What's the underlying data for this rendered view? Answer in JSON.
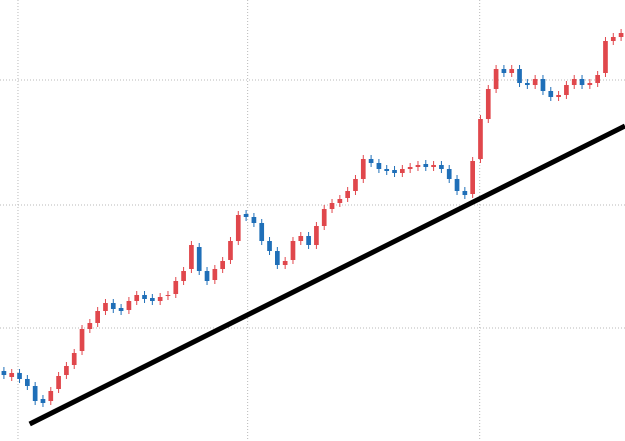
{
  "chart_data": {
    "type": "candlestick",
    "x": [
      0,
      1,
      2,
      3,
      4,
      5,
      6,
      7,
      8,
      9,
      10,
      11,
      12,
      13,
      14,
      15,
      16,
      17,
      18,
      19,
      20,
      21,
      22,
      23,
      24,
      25,
      26,
      27,
      28,
      29,
      30,
      31,
      32,
      33,
      34,
      35,
      36,
      37,
      38,
      39,
      40,
      41,
      42,
      43,
      44,
      45,
      46,
      47,
      48,
      49,
      50,
      51,
      52,
      53,
      54,
      55,
      56,
      57,
      58,
      59,
      60,
      61,
      62,
      63,
      64,
      65,
      66,
      67,
      68,
      69,
      70,
      71,
      72,
      73,
      74,
      75,
      76,
      77,
      78,
      79
    ],
    "open": [
      70,
      64,
      68,
      62,
      55,
      42,
      40,
      52,
      66,
      76,
      90,
      112,
      118,
      130,
      138,
      133,
      131,
      140,
      146,
      143,
      140,
      145,
      147,
      160,
      172,
      194,
      170,
      161,
      172,
      181,
      200,
      227,
      224,
      218,
      200,
      190,
      176,
      181,
      200,
      205,
      196,
      215,
      232,
      238,
      243,
      250,
      262,
      282,
      278,
      272,
      271,
      268,
      272,
      274,
      277,
      274,
      276,
      272,
      262,
      250,
      247,
      282,
      322,
      352,
      372,
      368,
      372,
      358,
      356,
      362,
      350,
      344,
      346,
      356,
      362,
      356,
      358,
      368,
      400,
      404
    ],
    "high": [
      74,
      72,
      72,
      66,
      59,
      46,
      54,
      69,
      79,
      92,
      116,
      122,
      134,
      142,
      142,
      137,
      144,
      150,
      150,
      147,
      148,
      150,
      164,
      174,
      200,
      198,
      174,
      176,
      184,
      204,
      230,
      231,
      228,
      222,
      204,
      194,
      184,
      204,
      209,
      209,
      219,
      236,
      242,
      246,
      254,
      266,
      286,
      286,
      282,
      276,
      275,
      276,
      278,
      280,
      281,
      280,
      280,
      276,
      266,
      254,
      284,
      326,
      356,
      376,
      376,
      376,
      376,
      362,
      366,
      366,
      354,
      350,
      360,
      366,
      366,
      362,
      370,
      404,
      408,
      412
    ],
    "low": [
      62,
      60,
      58,
      51,
      36,
      34,
      36,
      48,
      62,
      72,
      86,
      108,
      114,
      126,
      128,
      126,
      127,
      136,
      138,
      136,
      136,
      141,
      143,
      156,
      168,
      166,
      156,
      157,
      168,
      177,
      196,
      220,
      214,
      196,
      186,
      172,
      172,
      177,
      196,
      192,
      192,
      211,
      228,
      234,
      239,
      246,
      258,
      274,
      268,
      266,
      264,
      264,
      268,
      270,
      270,
      270,
      268,
      258,
      246,
      242,
      243,
      278,
      318,
      348,
      364,
      364,
      354,
      352,
      352,
      346,
      340,
      340,
      342,
      352,
      352,
      352,
      354,
      364,
      396,
      400
    ],
    "close": [
      66,
      68,
      62,
      55,
      40,
      38,
      50,
      65,
      75,
      88,
      112,
      118,
      130,
      138,
      132,
      130,
      140,
      146,
      142,
      140,
      144,
      146,
      160,
      170,
      196,
      170,
      160,
      172,
      180,
      200,
      226,
      224,
      218,
      200,
      190,
      176,
      180,
      200,
      205,
      196,
      215,
      232,
      238,
      242,
      250,
      262,
      282,
      278,
      272,
      270,
      268,
      272,
      274,
      276,
      274,
      276,
      272,
      262,
      250,
      246,
      280,
      322,
      352,
      372,
      368,
      372,
      358,
      356,
      362,
      350,
      344,
      346,
      356,
      362,
      356,
      358,
      366,
      400,
      404,
      408
    ],
    "up_color": "#e0474c",
    "down_color": "#1f6fb8",
    "trend_line": {
      "x": [
        3.3,
        79.5
      ],
      "y": [
        17,
        315
      ],
      "color": "#000000"
    },
    "xlim": [
      -0.5,
      79.5
    ],
    "xticks": [
      1.8,
      31.2,
      60.9
    ],
    "ylim": [
      0,
      441
    ],
    "yticks": [
      113,
      236,
      361
    ],
    "grid": true
  }
}
